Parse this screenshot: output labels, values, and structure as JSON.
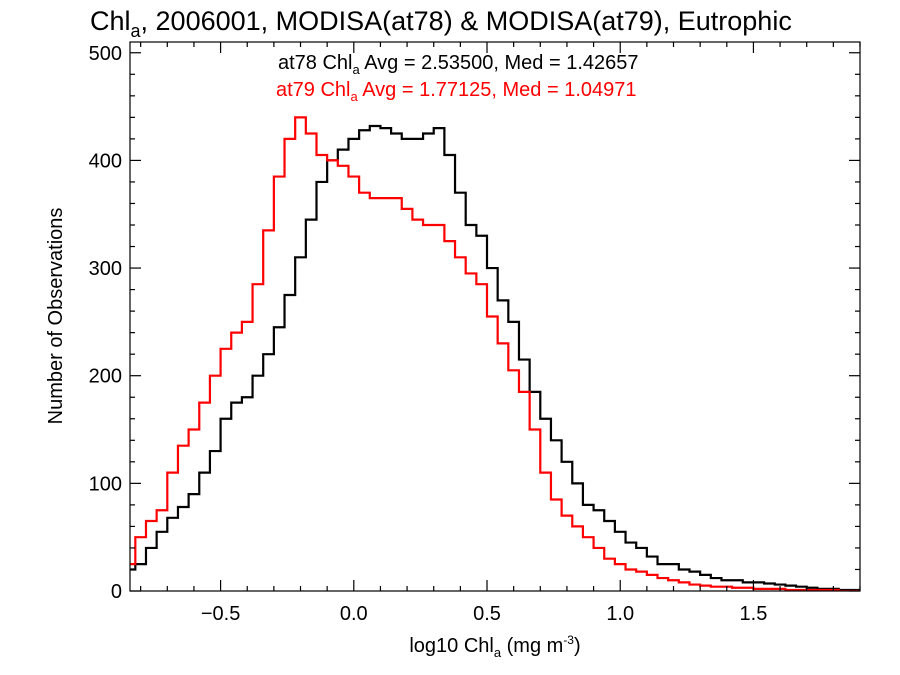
{
  "chart_data": {
    "type": "line",
    "drawstyle": "steps",
    "title": {
      "base": "Chl",
      "sub": "a",
      "rest": ", 2006001, MODISA(at78) & MODISA(at79), Eutrophic"
    },
    "xlabel": {
      "base": "log10 Chl",
      "sub": "a",
      "unit_pre": " (mg m",
      "unit_sup": "-3",
      "unit_post": ")"
    },
    "ylabel": "Number of Observations",
    "xlim": [
      -0.84,
      1.9
    ],
    "ylim": [
      0,
      510
    ],
    "xticks": [
      -0.5,
      0.0,
      0.5,
      1.0,
      1.5
    ],
    "xtick_labels": [
      "−0.5",
      "0.0",
      "0.5",
      "1.0",
      "1.5"
    ],
    "yticks": [
      0,
      100,
      200,
      300,
      400,
      500
    ],
    "ytick_labels": [
      "0",
      "100",
      "200",
      "300",
      "400",
      "500"
    ],
    "grid": false,
    "bin_width": 0.02,
    "annotations": [
      {
        "pre": "at78 Chl",
        "sub": "a",
        "post": " Avg = 2.53500, Med = 1.42657",
        "color": "#000000"
      },
      {
        "pre": "at79 Chl",
        "sub": "a",
        "post": " Avg = 1.77125, Med = 1.04971",
        "color": "#ff0000"
      }
    ],
    "series": [
      {
        "name": "at78",
        "color": "#000000",
        "x": [
          -0.84,
          -0.8,
          -0.76,
          -0.72,
          -0.68,
          -0.64,
          -0.6,
          -0.56,
          -0.52,
          -0.48,
          -0.44,
          -0.4,
          -0.36,
          -0.32,
          -0.28,
          -0.24,
          -0.2,
          -0.16,
          -0.12,
          -0.08,
          -0.04,
          0.0,
          0.04,
          0.08,
          0.12,
          0.16,
          0.2,
          0.24,
          0.28,
          0.32,
          0.36,
          0.4,
          0.44,
          0.48,
          0.52,
          0.56,
          0.6,
          0.64,
          0.68,
          0.72,
          0.76,
          0.8,
          0.84,
          0.88,
          0.92,
          0.96,
          1.0,
          1.04,
          1.08,
          1.12,
          1.16,
          1.2,
          1.24,
          1.28,
          1.32,
          1.36,
          1.4,
          1.44,
          1.48,
          1.52,
          1.56,
          1.6,
          1.64,
          1.68,
          1.72,
          1.76,
          1.8,
          1.84,
          1.88
        ],
        "values": [
          20,
          25,
          40,
          55,
          68,
          78,
          90,
          110,
          130,
          160,
          175,
          180,
          200,
          220,
          245,
          275,
          310,
          345,
          380,
          400,
          410,
          420,
          428,
          432,
          430,
          425,
          420,
          420,
          425,
          430,
          405,
          370,
          340,
          330,
          300,
          270,
          250,
          215,
          185,
          160,
          140,
          120,
          100,
          80,
          75,
          65,
          55,
          45,
          40,
          32,
          25,
          25,
          20,
          18,
          15,
          12,
          10,
          10,
          8,
          8,
          7,
          6,
          5,
          4,
          3,
          2,
          2,
          1,
          1
        ]
      },
      {
        "name": "at79",
        "color": "#ff0000",
        "x": [
          -0.84,
          -0.8,
          -0.76,
          -0.72,
          -0.68,
          -0.64,
          -0.6,
          -0.56,
          -0.52,
          -0.48,
          -0.44,
          -0.4,
          -0.36,
          -0.32,
          -0.28,
          -0.24,
          -0.2,
          -0.16,
          -0.12,
          -0.08,
          -0.04,
          0.0,
          0.04,
          0.08,
          0.12,
          0.16,
          0.2,
          0.24,
          0.28,
          0.32,
          0.36,
          0.4,
          0.44,
          0.48,
          0.52,
          0.56,
          0.6,
          0.64,
          0.68,
          0.72,
          0.76,
          0.8,
          0.84,
          0.88,
          0.92,
          0.96,
          1.0,
          1.04,
          1.08,
          1.12,
          1.16,
          1.2,
          1.24,
          1.28,
          1.32,
          1.36,
          1.4,
          1.44,
          1.48,
          1.52,
          1.56,
          1.6,
          1.64,
          1.68,
          1.72,
          1.76,
          1.8,
          1.84,
          1.88
        ],
        "values": [
          25,
          50,
          65,
          75,
          110,
          135,
          150,
          175,
          200,
          225,
          240,
          250,
          285,
          335,
          385,
          420,
          440,
          425,
          405,
          400,
          395,
          385,
          370,
          365,
          365,
          365,
          355,
          345,
          340,
          340,
          325,
          310,
          295,
          285,
          255,
          230,
          205,
          185,
          150,
          110,
          85,
          70,
          60,
          50,
          40,
          30,
          25,
          20,
          18,
          15,
          12,
          10,
          8,
          6,
          5,
          4,
          4,
          3,
          3,
          2,
          2,
          2,
          1,
          1,
          1,
          1,
          1,
          0,
          0
        ]
      }
    ]
  }
}
